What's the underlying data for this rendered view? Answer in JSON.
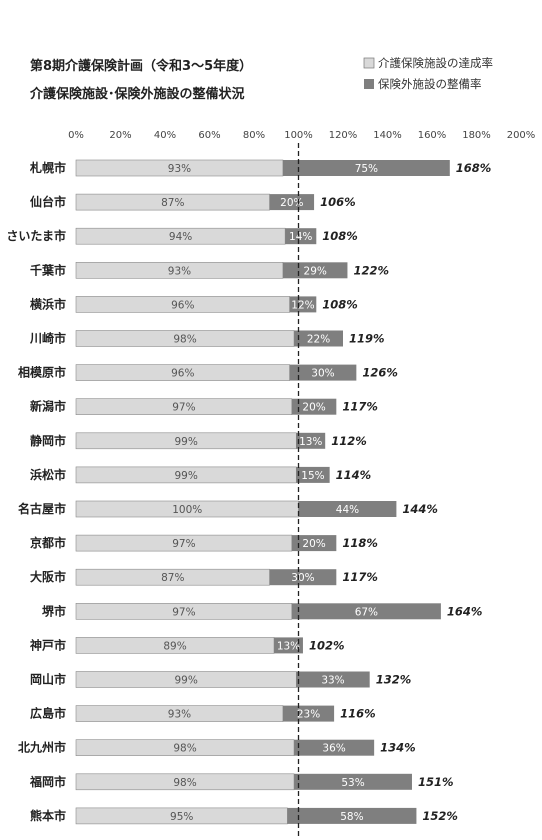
{
  "chart_data": {
    "type": "bar",
    "orientation": "horizontal",
    "stacked": true,
    "title_line1": "第8期介護保険計画（令和3～5年度）",
    "title_line2": "介護保険施設･保険外施設の整備状況",
    "xlim": [
      0,
      200
    ],
    "x_ticks": [
      "0%",
      "20%",
      "40%",
      "60%",
      "80%",
      "100%",
      "120%",
      "140%",
      "160%",
      "180%",
      "200%"
    ],
    "reference_line": 100,
    "legend_position": "top-right",
    "categories": [
      "札幌市",
      "仙台市",
      "さいたま市",
      "千葉市",
      "横浜市",
      "川崎市",
      "相模原市",
      "新潟市",
      "静岡市",
      "浜松市",
      "名古屋市",
      "京都市",
      "大阪市",
      "堺市",
      "神戸市",
      "岡山市",
      "広島市",
      "北九州市",
      "福岡市",
      "熊本市"
    ],
    "series": [
      {
        "name": "介護保険施設の達成率",
        "color": "#d9d9d9",
        "values": [
          93,
          87,
          94,
          93,
          96,
          98,
          96,
          97,
          99,
          99,
          100,
          97,
          87,
          97,
          89,
          99,
          93,
          98,
          98,
          95
        ],
        "labels": [
          "93%",
          "87%",
          "94%",
          "93%",
          "96%",
          "98%",
          "96%",
          "97%",
          "99%",
          "99%",
          "100%",
          "97%",
          "87%",
          "97%",
          "89%",
          "99%",
          "93%",
          "98%",
          "98%",
          "95%"
        ]
      },
      {
        "name": "保険外施設の整備率",
        "color": "#7f7f7f",
        "values": [
          75,
          20,
          14,
          29,
          12,
          22,
          30,
          20,
          13,
          15,
          44,
          20,
          30,
          67,
          13,
          33,
          23,
          36,
          53,
          58
        ],
        "labels": [
          "75%",
          "20%",
          "14%",
          "29%",
          "12%",
          "22%",
          "30%",
          "20%",
          "13%",
          "15%",
          "44%",
          "20%",
          "30%",
          "67%",
          "13%",
          "33%",
          "23%",
          "36%",
          "53%",
          "58%"
        ]
      }
    ],
    "totals": [
      168,
      106,
      108,
      122,
      108,
      119,
      126,
      117,
      112,
      114,
      144,
      118,
      117,
      164,
      102,
      132,
      116,
      134,
      151,
      152
    ],
    "total_labels": [
      "168%",
      "106%",
      "108%",
      "122%",
      "108%",
      "119%",
      "126%",
      "117%",
      "112%",
      "114%",
      "144%",
      "118%",
      "117%",
      "164%",
      "102%",
      "132%",
      "116%",
      "134%",
      "151%",
      "152%"
    ]
  }
}
